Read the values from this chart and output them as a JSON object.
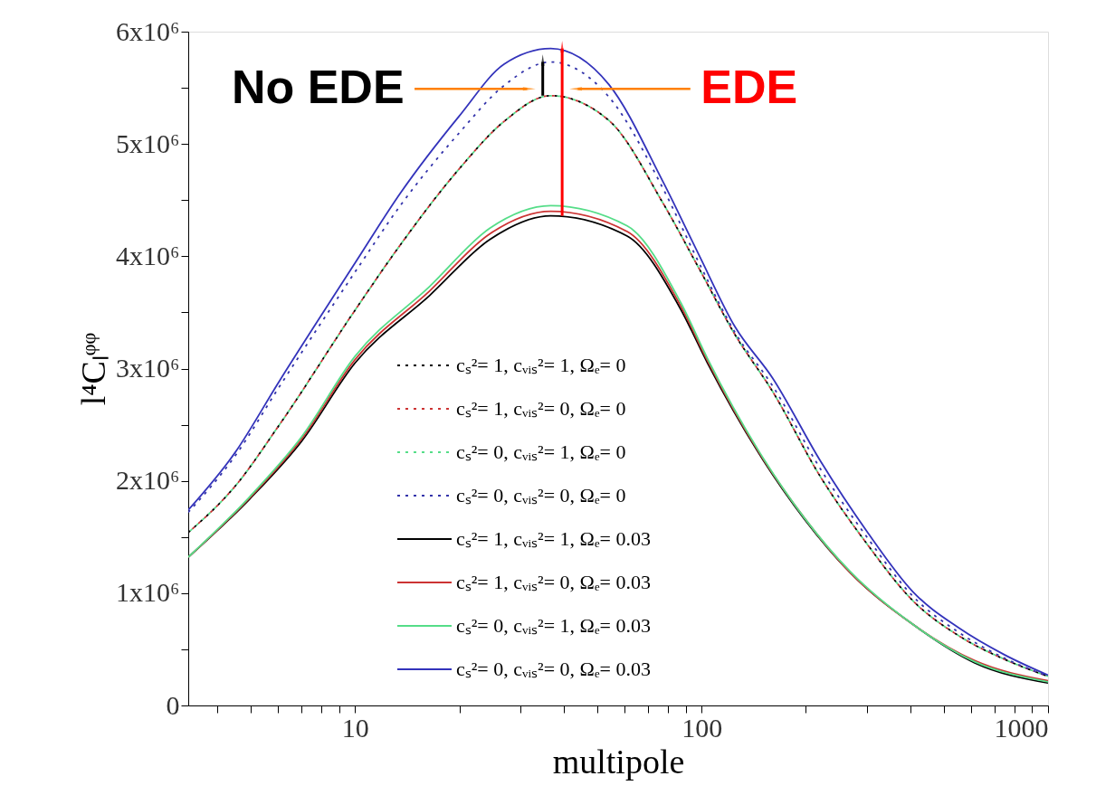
{
  "chart_data": {
    "type": "line",
    "xlabel": "multipole",
    "ylabel": "l⁴Cₗᵠᵠ",
    "xlim": [
      3.3,
      1000
    ],
    "xticks": [
      {
        "value": 4,
        "label": null
      },
      {
        "value": 5,
        "label": null
      },
      {
        "value": 6,
        "label": null
      },
      {
        "value": 7,
        "label": null
      },
      {
        "value": 8,
        "label": null
      },
      {
        "value": 9,
        "label": null
      },
      10,
      {
        "value": 20,
        "label": null
      },
      {
        "value": 30,
        "label": null
      },
      {
        "value": 40,
        "label": null
      },
      {
        "value": 50,
        "label": null
      },
      {
        "value": 60,
        "label": null
      },
      {
        "value": 70,
        "label": null
      },
      {
        "value": 80,
        "label": null
      },
      {
        "value": 90,
        "label": null
      },
      100,
      {
        "value": 200,
        "label": null
      },
      {
        "value": 300,
        "label": null
      },
      {
        "value": 400,
        "label": null
      },
      {
        "value": 500,
        "label": null
      },
      {
        "value": 600,
        "label": null
      },
      {
        "value": 700,
        "label": null
      },
      {
        "value": 800,
        "label": null
      },
      {
        "value": 900,
        "label": null
      },
      1000
    ],
    "ylim": [
      0,
      6000000
    ],
    "yticks": [
      0,
      {
        "value": 500000,
        "label": null
      },
      {
        "value": 1000000,
        "label": "1x10⁶"
      },
      {
        "value": 1500000,
        "label": null
      },
      {
        "value": 2000000,
        "label": "2x10⁶"
      },
      {
        "value": 2500000,
        "label": null
      },
      {
        "value": 3000000,
        "label": "3x10⁶"
      },
      {
        "value": 3500000,
        "label": null
      },
      {
        "value": 4000000,
        "label": "4x10⁶"
      },
      {
        "value": 4500000,
        "label": null
      },
      {
        "value": 5000000,
        "label": "5x10⁶"
      },
      {
        "value": 5500000,
        "label": null
      },
      {
        "value": 6000000,
        "label": "6x10⁶"
      }
    ],
    "log": "x",
    "grid": false,
    "legend": "bottom",
    "annotations": [
      "No EDE",
      "EDE"
    ],
    "series": [
      {
        "name": "cₛ²= 1, cᵥᵢₛ²= 1, Ωₑ= 0",
        "color": "#000000",
        "line_style": "dotted",
        "x": [
          3.3,
          4.5,
          6.05,
          10,
          13.5,
          20,
          26.9,
          36.7,
          54,
          77.5,
          98,
          125,
          160,
          221,
          300,
          408,
          553,
          750,
          1000
        ],
        "values": [
          1540000,
          1950000,
          2500000,
          3520000,
          4100000,
          4780000,
          5200000,
          5430000,
          5210000,
          4470000,
          3900000,
          3300000,
          2800000,
          2030000,
          1440000,
          930000,
          620000,
          410000,
          260000
        ]
      },
      {
        "name": "cₛ²= 1, cᵥᵢₛ²= 0, Ωₑ= 0",
        "color": "#cc3333",
        "line_style": "dotted",
        "x": [
          3.3,
          4.5,
          6.05,
          10,
          13.5,
          20,
          26.9,
          36.7,
          54,
          77.5,
          98,
          125,
          160,
          221,
          300,
          408,
          553,
          750,
          1000
        ],
        "values": [
          1540000,
          1950000,
          2500000,
          3520000,
          4100000,
          4780000,
          5200000,
          5430000,
          5210000,
          4470000,
          3900000,
          3300000,
          2800000,
          2030000,
          1440000,
          930000,
          620000,
          410000,
          260000
        ]
      },
      {
        "name": "cₛ²= 0, cᵥᵢₛ²= 1, Ωₑ= 0",
        "color": "#55dd88",
        "line_style": "dotted",
        "x": [
          3.3,
          4.5,
          6.05,
          10,
          13.5,
          20,
          26.9,
          36.7,
          54,
          77.5,
          98,
          125,
          160,
          221,
          300,
          408,
          553,
          750,
          1000
        ],
        "values": [
          1540000,
          1950000,
          2500000,
          3520000,
          4100000,
          4780000,
          5200000,
          5430000,
          5210000,
          4470000,
          3900000,
          3300000,
          2800000,
          2030000,
          1440000,
          930000,
          620000,
          410000,
          260000
        ]
      },
      {
        "name": "cₛ²= 0, cᵥᵢₛ²= 0, Ωₑ= 0",
        "color": "#3333aa",
        "line_style": "dotted",
        "x": [
          3.3,
          4.5,
          6.05,
          10,
          13.5,
          20,
          26.9,
          36.7,
          54,
          77.5,
          98,
          125,
          160,
          221,
          300,
          408,
          553,
          750,
          1000
        ],
        "values": [
          1720000,
          2220000,
          2840000,
          3860000,
          4450000,
          5100000,
          5520000,
          5730000,
          5420000,
          4600000,
          3950000,
          3320000,
          2850000,
          2100000,
          1500000,
          970000,
          650000,
          420000,
          260000
        ]
      },
      {
        "name": "cₛ²= 1, cᵥᵢₛ²= 1, Ωₑ= 0.03",
        "color": "#000000",
        "line_style": "solid",
        "x": [
          3.3,
          4.97,
          7,
          10,
          16.4,
          24.5,
          36.7,
          61,
          87,
          104,
          146,
          198,
          269,
          408,
          614,
          1000
        ],
        "values": [
          1320000,
          1840000,
          2350000,
          3050000,
          3650000,
          4150000,
          4360000,
          4180000,
          3530000,
          3050000,
          2250000,
          1660000,
          1180000,
          720000,
          380000,
          200000
        ]
      },
      {
        "name": "cₛ²= 1, cᵥᵢₛ²= 0, Ωₑ= 0.03",
        "color": "#cc3333",
        "line_style": "solid",
        "x": [
          3.3,
          4.97,
          7,
          10,
          16.4,
          24.5,
          36.7,
          61,
          87,
          104,
          146,
          198,
          269,
          408,
          614,
          1000
        ],
        "values": [
          1320000,
          1850000,
          2370000,
          3080000,
          3690000,
          4200000,
          4400000,
          4220000,
          3560000,
          3070000,
          2260000,
          1670000,
          1180000,
          720000,
          400000,
          220000
        ]
      },
      {
        "name": "cₛ²= 0, cᵥᵢₛ²= 1, Ωₑ= 0.03",
        "color": "#55dd88",
        "line_style": "solid",
        "x": [
          3.3,
          4.97,
          7,
          10,
          16.4,
          24.5,
          36.7,
          61,
          87,
          104,
          146,
          198,
          269,
          408,
          614,
          1000
        ],
        "values": [
          1320000,
          1860000,
          2390000,
          3110000,
          3730000,
          4250000,
          4450000,
          4270000,
          3590000,
          3090000,
          2270000,
          1670000,
          1190000,
          720000,
          390000,
          210000
        ]
      },
      {
        "name": "cₛ²= 0, cᵥᵢₛ²= 0, Ωₑ= 0.03",
        "color": "#3333bb",
        "line_style": "solid",
        "x": [
          3.3,
          4.5,
          6.05,
          10,
          13.5,
          20,
          26.9,
          36.7,
          54,
          77.5,
          98,
          125,
          160,
          221,
          300,
          408,
          553,
          750,
          1000
        ],
        "values": [
          1740000,
          2250000,
          2890000,
          3940000,
          4560000,
          5250000,
          5710000,
          5850000,
          5530000,
          4660000,
          4020000,
          3370000,
          2920000,
          2170000,
          1550000,
          1010000,
          690000,
          450000,
          270000
        ]
      }
    ]
  }
}
